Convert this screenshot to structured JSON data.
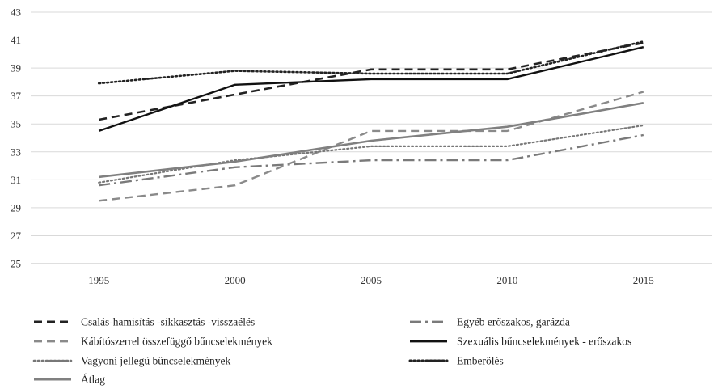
{
  "chart_data": {
    "type": "line",
    "x": [
      "1995",
      "2000",
      "2005",
      "2010",
      "2015"
    ],
    "ylim": [
      25,
      43
    ],
    "yticks": [
      25,
      27,
      29,
      31,
      33,
      35,
      37,
      39,
      41,
      43
    ],
    "grid": true,
    "legend_position": "bottom",
    "series": [
      {
        "name": "Csalás-hamisítás -sikkasztás -visszaélés",
        "values": [
          35.3,
          37.1,
          38.9,
          38.9,
          40.8
        ],
        "color": "#222222",
        "dash": "10,6",
        "width": 2.6
      },
      {
        "name": "Egyéb  erőszakos, garázda",
        "values": [
          30.6,
          31.9,
          32.4,
          32.4,
          34.2
        ],
        "color": "#7a7a7a",
        "dash": "14,5,3,5",
        "width": 2.4
      },
      {
        "name": "Kábítószerrel összefüggő bűncselekmények",
        "values": [
          29.5,
          30.6,
          34.5,
          34.5,
          37.3
        ],
        "color": "#8a8a8a",
        "dash": "10,6",
        "width": 2.4
      },
      {
        "name": "Szexuális bűncselekmények - erőszakos",
        "values": [
          34.5,
          37.8,
          38.2,
          38.2,
          40.5
        ],
        "color": "#111111",
        "dash": "",
        "width": 2.4
      },
      {
        "name": "Vagyoni jellegű bűncselekmények",
        "values": [
          30.8,
          32.4,
          33.4,
          33.4,
          34.9
        ],
        "color": "#777777",
        "dash": "2,3",
        "width": 2.2
      },
      {
        "name": "Emberölés",
        "values": [
          37.9,
          38.8,
          38.6,
          38.6,
          40.9
        ],
        "color": "#222222",
        "dash": "2,3",
        "width": 2.6
      },
      {
        "name": "Átlag",
        "values": [
          31.2,
          32.3,
          33.8,
          34.8,
          36.5
        ],
        "color": "#808080",
        "dash": "",
        "width": 2.6
      }
    ]
  }
}
